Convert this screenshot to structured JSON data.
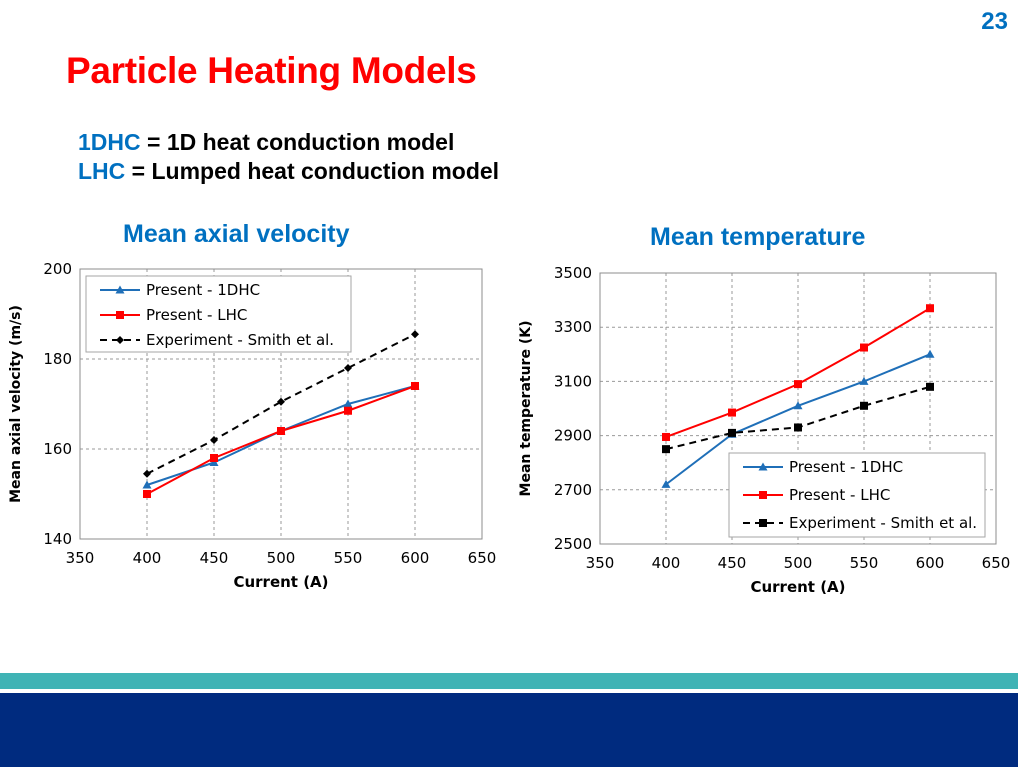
{
  "slide": {
    "page_number": "23",
    "title": "Particle Heating Models",
    "definitions": [
      {
        "abbr": "1DHC",
        "text": " = 1D heat conduction model"
      },
      {
        "abbr": "LHC",
        "text": " = Lumped heat conduction model"
      }
    ]
  },
  "colors": {
    "title": "#ff0000",
    "accent": "#0070c0",
    "series_1dhc": "#1f6fb8",
    "series_lhc": "#ff0000",
    "series_experiment": "#000000",
    "footer_teal": "#3fb3b5",
    "footer_navy": "#002b7f"
  },
  "chart_data": [
    {
      "type": "line",
      "title": "Mean axial velocity",
      "xlabel": "Current (A)",
      "ylabel": "Mean axial velocity (m/s)",
      "xlim": [
        350,
        650
      ],
      "ylim": [
        140,
        200
      ],
      "xticks": [
        350,
        400,
        450,
        500,
        550,
        600,
        650
      ],
      "yticks": [
        140,
        160,
        180,
        200
      ],
      "grid": true,
      "legend_position": "top-left",
      "series": [
        {
          "name": "Present - 1DHC",
          "marker": "triangle",
          "line": "solid",
          "color": "#1f6fb8",
          "x": [
            400,
            450,
            500,
            550,
            600
          ],
          "y": [
            152,
            157,
            164,
            170,
            174
          ]
        },
        {
          "name": "Present - LHC",
          "marker": "square",
          "line": "solid",
          "color": "#ff0000",
          "x": [
            400,
            450,
            500,
            550,
            600
          ],
          "y": [
            150,
            158,
            164,
            168.5,
            174
          ]
        },
        {
          "name": "Experiment - Smith et al.",
          "marker": "diamond",
          "line": "dashed",
          "color": "#000000",
          "x": [
            400,
            450,
            500,
            550,
            600
          ],
          "y": [
            154.5,
            162,
            170.5,
            178,
            185.5
          ]
        }
      ]
    },
    {
      "type": "line",
      "title": "Mean temperature",
      "xlabel": "Current (A)",
      "ylabel": "Mean temperature (K)",
      "xlim": [
        350,
        650
      ],
      "ylim": [
        2500,
        3500
      ],
      "xticks": [
        350,
        400,
        450,
        500,
        550,
        600,
        650
      ],
      "yticks": [
        2500,
        2700,
        2900,
        3100,
        3300,
        3500
      ],
      "grid": true,
      "legend_position": "bottom-right",
      "series": [
        {
          "name": "Present - 1DHC",
          "marker": "triangle",
          "line": "solid",
          "color": "#1f6fb8",
          "x": [
            400,
            450,
            500,
            550,
            600
          ],
          "y": [
            2720,
            2905,
            3010,
            3100,
            3200
          ]
        },
        {
          "name": "Present - LHC",
          "marker": "square",
          "line": "solid",
          "color": "#ff0000",
          "x": [
            400,
            450,
            500,
            550,
            600
          ],
          "y": [
            2895,
            2985,
            3090,
            3225,
            3370
          ]
        },
        {
          "name": "Experiment - Smith et al.",
          "marker": "square",
          "line": "dashed",
          "color": "#000000",
          "x": [
            400,
            450,
            500,
            550,
            600
          ],
          "y": [
            2850,
            2910,
            2930,
            3010,
            3080
          ]
        }
      ]
    }
  ]
}
